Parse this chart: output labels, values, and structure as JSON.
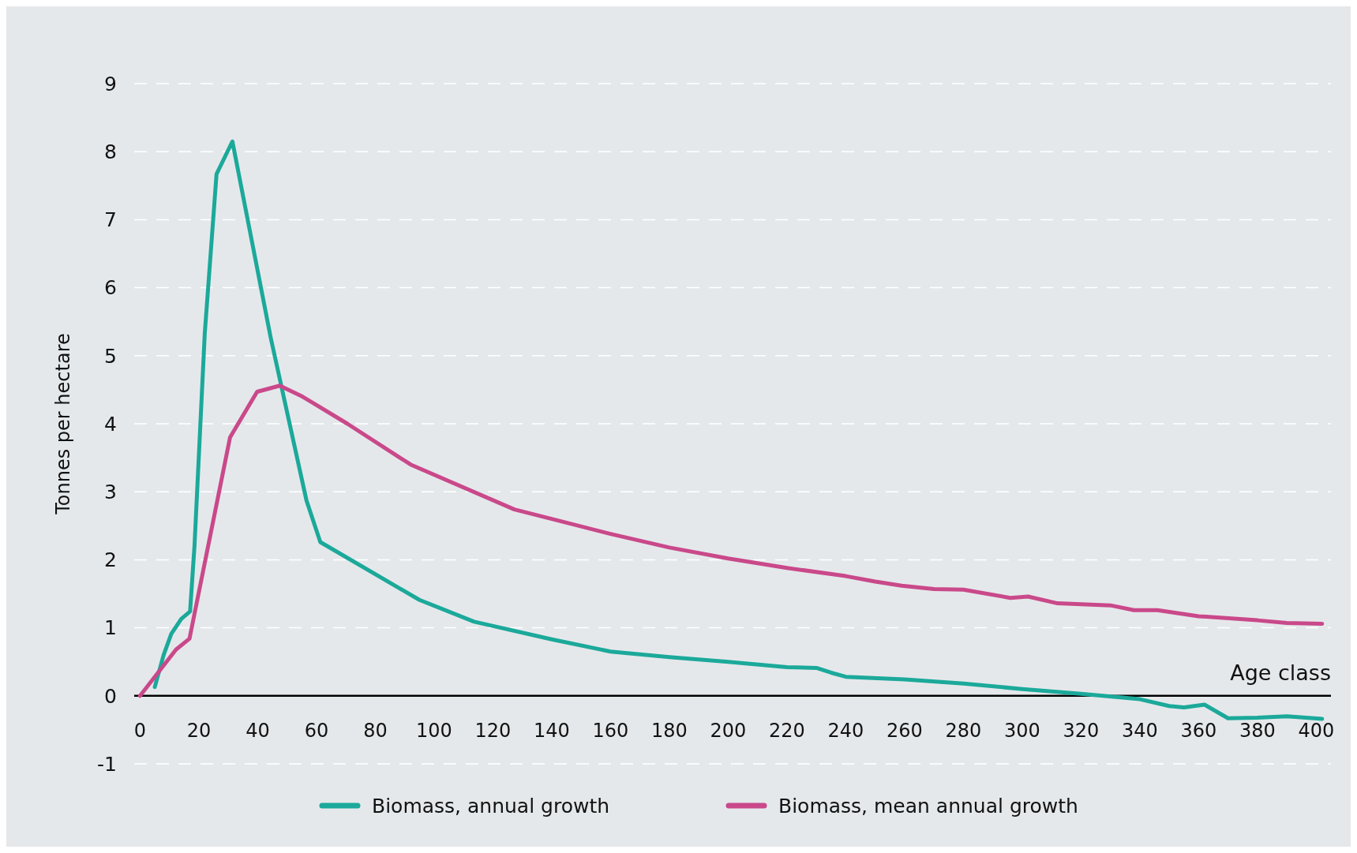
{
  "chart_data": {
    "type": "line",
    "xlabel": "Age class",
    "ylabel": "Tonnes per hectare",
    "xlim": [
      -2,
      405
    ],
    "ylim": [
      -1,
      9
    ],
    "xticks": [
      0,
      20,
      40,
      60,
      80,
      100,
      120,
      140,
      160,
      180,
      200,
      220,
      240,
      260,
      280,
      300,
      320,
      340,
      360,
      380,
      400
    ],
    "yticks": [
      -1,
      0,
      1,
      2,
      3,
      4,
      5,
      6,
      7,
      8,
      9
    ],
    "grid": "y",
    "legend": "bottom",
    "line_style": "solid",
    "marker": "none",
    "series": [
      {
        "name": "Biomass, annual growth",
        "color": "#1ba99a",
        "x": [
          5,
          8,
          10.6,
          14,
          17,
          18.5,
          22,
          26,
          31.4,
          44.4,
          56.6,
          61.3,
          95,
          113.6,
          140,
          160,
          180,
          200,
          220,
          230,
          235,
          240,
          260,
          280,
          300,
          320,
          340,
          350,
          355,
          362,
          370,
          380,
          390,
          402
        ],
        "values": [
          0.13,
          0.6,
          0.91,
          1.13,
          1.24,
          2.2,
          5.33,
          7.67,
          8.15,
          5.27,
          2.87,
          2.26,
          1.41,
          1.09,
          0.83,
          0.65,
          0.57,
          0.5,
          0.42,
          0.41,
          0.34,
          0.28,
          0.24,
          0.18,
          0.1,
          0.03,
          -0.05,
          -0.15,
          -0.17,
          -0.13,
          -0.33,
          -0.32,
          -0.3,
          -0.34
        ]
      },
      {
        "name": "Biomass, mean annual growth",
        "color": "#c9498a",
        "x": [
          0,
          12.2,
          16.8,
          30.6,
          39.8,
          47.5,
          55.2,
          70.5,
          92,
          127.3,
          140,
          160,
          180,
          200,
          220,
          240,
          250,
          259,
          270,
          280,
          296,
          302,
          312,
          330,
          338,
          346,
          360,
          380,
          390,
          402
        ],
        "values": [
          0,
          0.68,
          0.84,
          3.8,
          4.47,
          4.56,
          4.4,
          4.0,
          3.4,
          2.74,
          2.6,
          2.38,
          2.18,
          2.02,
          1.88,
          1.76,
          1.68,
          1.62,
          1.57,
          1.56,
          1.44,
          1.46,
          1.36,
          1.33,
          1.26,
          1.26,
          1.17,
          1.11,
          1.07,
          1.06
        ]
      }
    ]
  }
}
